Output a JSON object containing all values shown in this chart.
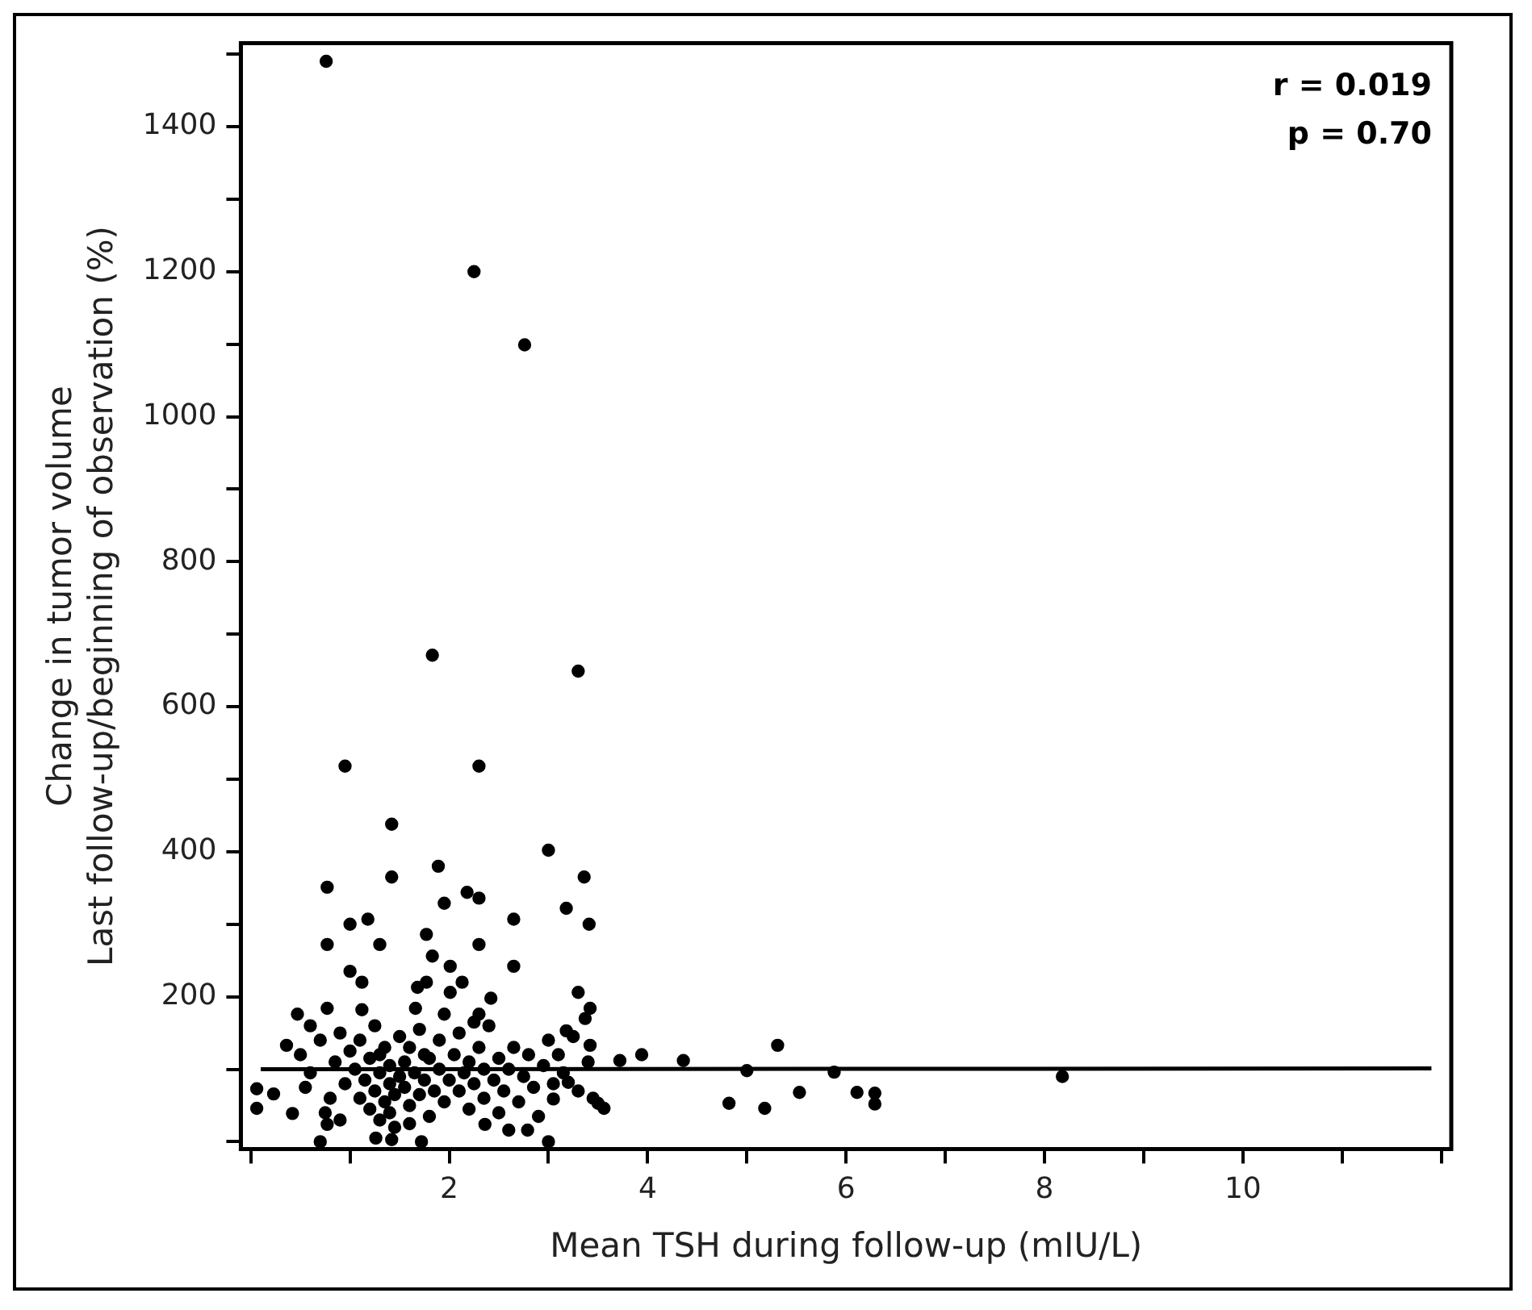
{
  "chart_data": {
    "type": "scatter",
    "xlabel": "Mean TSH during follow-up (mIU/L)",
    "ylabel": "Change in tumor volume\nLast follow-up/beginning of observation (%)",
    "xlim": [
      -0.1,
      12.1
    ],
    "ylim": [
      -10,
      1515
    ],
    "xticks": [
      {
        "value": 0,
        "label": null
      },
      {
        "value": 1,
        "label": null
      },
      2,
      {
        "value": 3,
        "label": null
      },
      4,
      {
        "value": 5,
        "label": null
      },
      6,
      {
        "value": 7,
        "label": null
      },
      8,
      {
        "value": 9,
        "label": null
      },
      10,
      {
        "value": 11,
        "label": null
      },
      {
        "value": 12,
        "label": null
      }
    ],
    "yticks": [
      {
        "value": 0,
        "label": null
      },
      {
        "value": 100,
        "label": null
      },
      200,
      {
        "value": 300,
        "label": null
      },
      400,
      {
        "value": 500,
        "label": null
      },
      600,
      {
        "value": 700,
        "label": null
      },
      800,
      {
        "value": 900,
        "label": null
      },
      1000,
      {
        "value": 1100,
        "label": null
      },
      1200,
      {
        "value": 1300,
        "label": null
      },
      1400,
      {
        "value": 1500,
        "label": null
      }
    ],
    "annotations": [
      "r = 0.019",
      "p = 0.70"
    ],
    "grid": false,
    "legend": false,
    "marker": "circle",
    "series": [
      {
        "color": "#000000",
        "x": [
          0.76,
          2.25,
          2.76,
          1.83,
          3.3,
          0.95,
          2.3,
          1.42,
          1.89,
          1.42,
          3.0,
          3.36,
          0.77,
          1.95,
          2.18,
          2.3,
          3.18,
          3.41,
          2.65,
          1.0,
          1.18,
          0.77,
          1.3,
          2.3,
          1.77,
          1.83,
          2.65,
          2.01,
          2.13,
          1.0,
          1.12,
          1.77,
          1.68,
          2.01,
          2.42,
          3.3,
          3.42,
          3.37,
          0.47,
          0.77,
          1.12,
          1.66,
          1.95,
          2.3,
          3.18,
          3.42,
          0.36,
          3.72,
          3.94,
          4.36,
          5.31,
          5.0,
          4.82,
          5.18,
          3.5,
          3.56,
          0.06,
          0.06,
          0.23,
          0.42,
          0.7,
          1.72,
          3.0,
          2.36,
          2.6,
          2.79,
          1.26,
          1.42,
          0.77,
          3.05,
          3.2,
          5.53,
          5.88,
          6.11,
          6.29,
          6.29,
          8.18,
          0.5,
          0.6,
          0.7,
          0.8,
          0.85,
          0.9,
          0.95,
          0.6,
          0.75,
          0.9,
          1.0,
          0.55,
          1.05,
          1.1,
          1.1,
          1.15,
          1.2,
          1.2,
          1.25,
          1.25,
          1.3,
          1.3,
          1.35,
          1.35,
          1.4,
          1.4,
          1.45,
          1.45,
          1.5,
          1.5,
          1.3,
          1.4,
          1.55,
          1.55,
          1.6,
          1.6,
          1.65,
          1.7,
          1.7,
          1.75,
          1.8,
          1.8,
          1.85,
          1.9,
          1.9,
          1.95,
          2.0,
          1.6,
          1.75,
          2.05,
          2.1,
          2.1,
          2.15,
          2.2,
          2.2,
          2.25,
          2.3,
          2.35,
          2.35,
          2.4,
          2.45,
          2.5,
          2.5,
          2.25,
          2.55,
          2.6,
          2.65,
          2.7,
          2.75,
          2.8,
          2.85,
          2.9,
          2.95,
          3.0,
          3.05,
          3.1,
          3.15,
          3.25,
          3.3,
          3.4,
          3.45
        ],
        "values": [
          1490,
          1200,
          1099,
          671,
          649,
          518,
          518,
          438,
          380,
          365,
          402,
          365,
          351,
          329,
          344,
          336,
          322,
          300,
          307,
          300,
          307,
          272,
          272,
          272,
          286,
          256,
          242,
          242,
          220,
          235,
          220,
          220,
          213,
          206,
          198,
          206,
          184,
          170,
          176,
          184,
          182,
          184,
          176,
          176,
          153,
          133,
          133,
          112,
          120,
          112,
          133,
          98,
          53,
          46,
          53,
          46,
          73,
          46,
          66,
          39,
          0,
          0,
          0,
          24,
          16,
          16,
          5,
          3,
          24,
          59,
          82,
          68,
          96,
          68,
          67,
          52,
          90,
          120,
          95,
          140,
          60,
          110,
          150,
          80,
          160,
          40,
          30,
          125,
          75,
          100,
          60,
          140,
          85,
          115,
          45,
          70,
          160,
          95,
          30,
          130,
          55,
          80,
          105,
          20,
          65,
          90,
          145,
          120,
          40,
          75,
          110,
          50,
          130,
          95,
          65,
          155,
          85,
          115,
          35,
          70,
          100,
          140,
          55,
          85,
          25,
          120,
          120,
          70,
          150,
          95,
          45,
          110,
          80,
          130,
          60,
          100,
          160,
          85,
          115,
          40,
          165,
          70,
          100,
          130,
          55,
          90,
          120,
          75,
          35,
          105,
          140,
          80,
          120,
          95,
          145,
          70,
          110,
          60
        ]
      },
      {
        "type": "line",
        "marker": "none",
        "color": "#000000",
        "x": [
          0.1,
          11.9
        ],
        "values": [
          100,
          101
        ]
      }
    ]
  }
}
